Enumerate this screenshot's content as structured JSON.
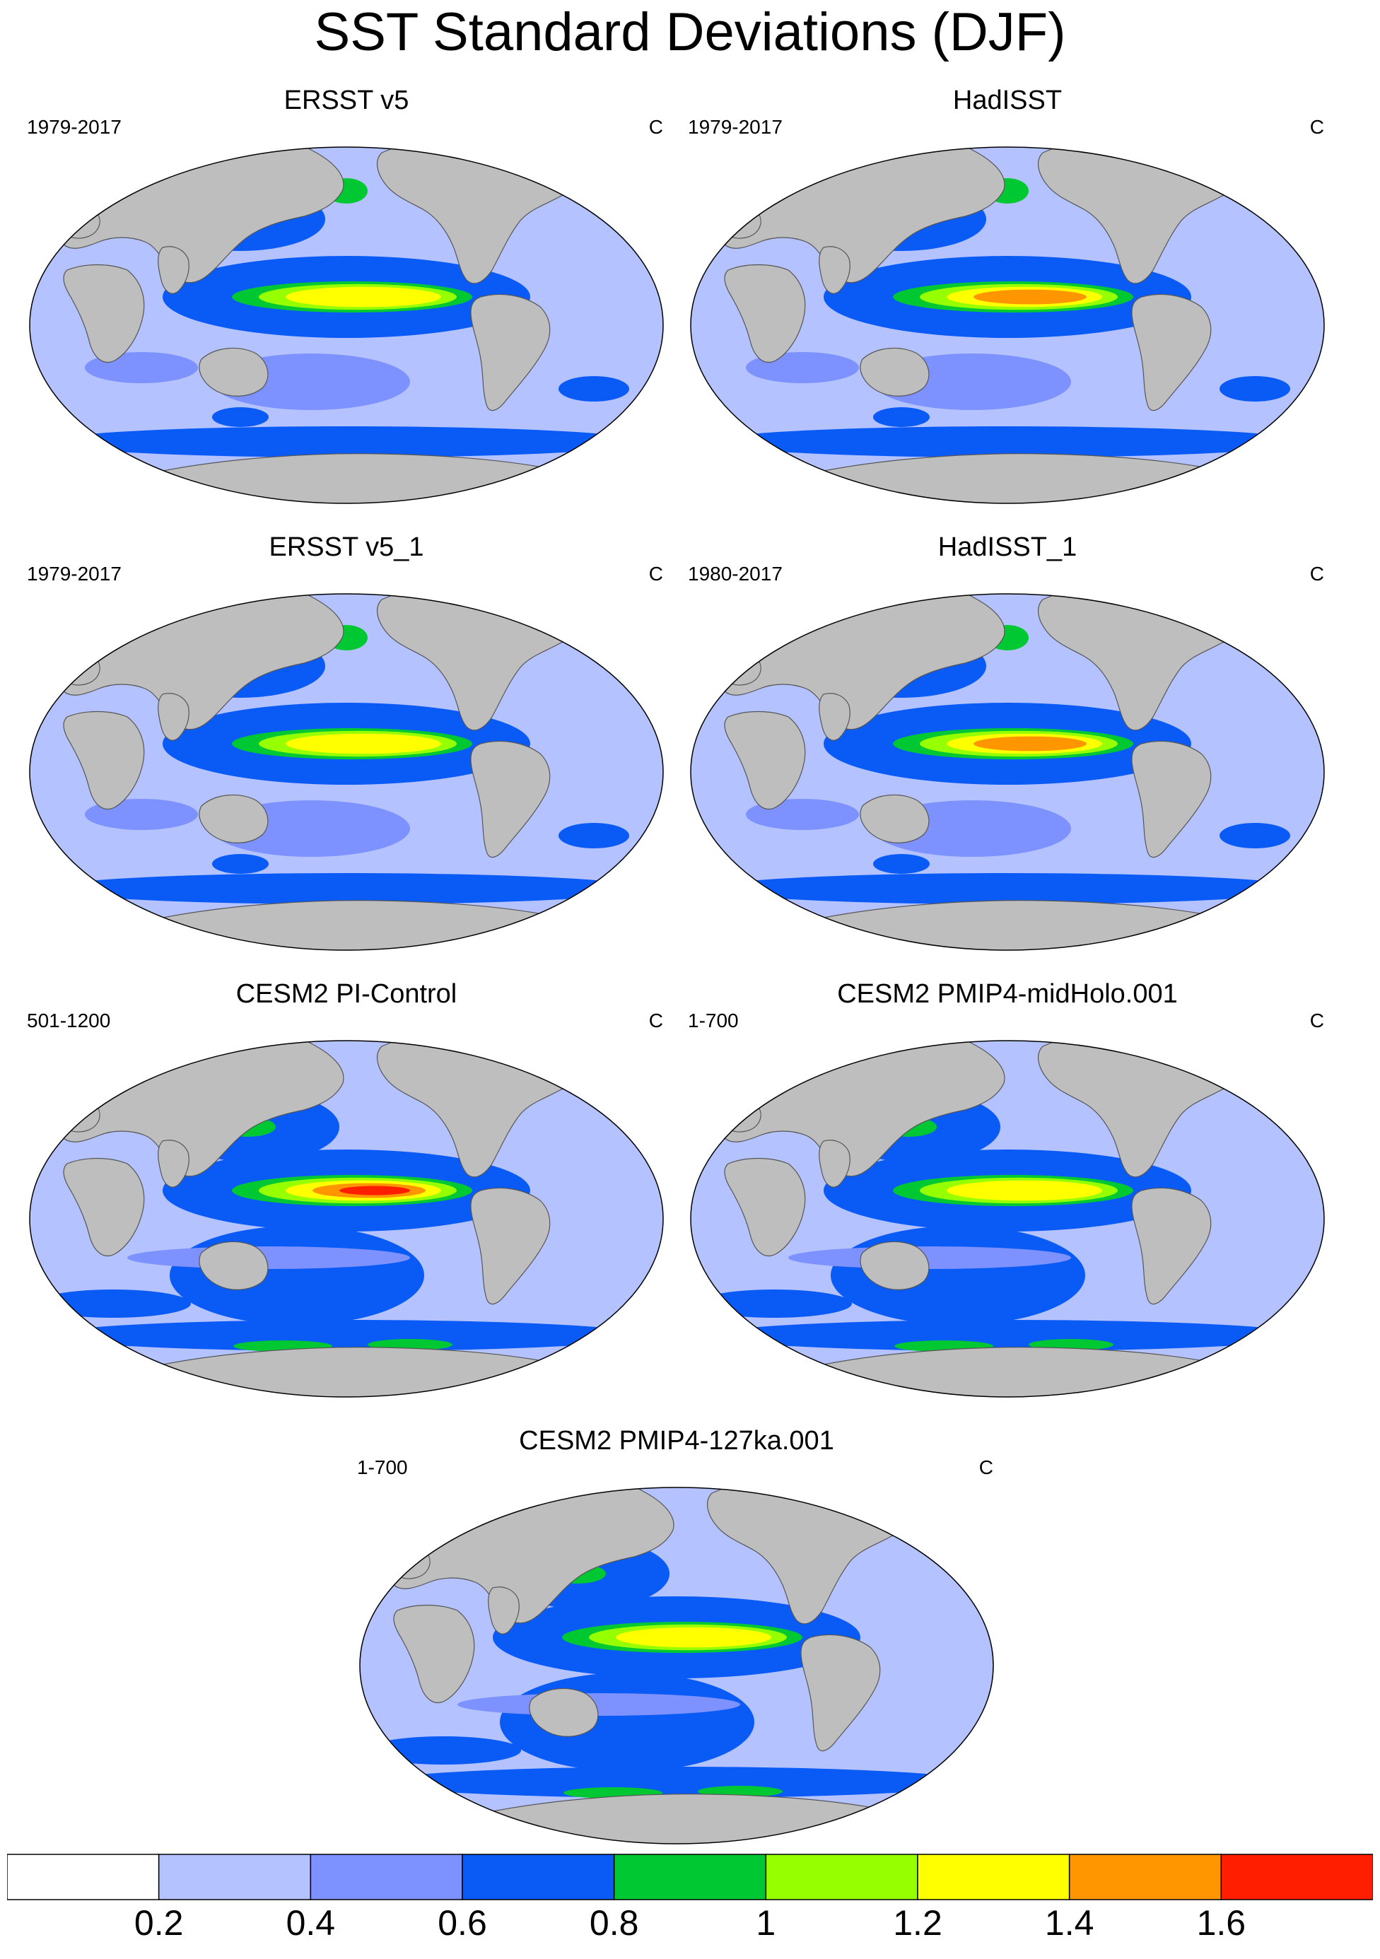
{
  "title": "SST Standard Deviations (DJF)",
  "panels": [
    {
      "title": "ERSST v5",
      "period": "1979-2017",
      "unit": "C",
      "enso_max": 1.25,
      "kind": "obs"
    },
    {
      "title": "HadISST",
      "period": "1979-2017",
      "unit": "C",
      "enso_max": 1.45,
      "kind": "obs2"
    },
    {
      "title": "ERSST v5_1",
      "period": "1979-2017",
      "unit": "C",
      "enso_max": 1.25,
      "kind": "obs"
    },
    {
      "title": "HadISST_1",
      "period": "1980-2017",
      "unit": "C",
      "enso_max": 1.45,
      "kind": "obs2"
    },
    {
      "title": "CESM2 PI-Control",
      "period": "501-1200",
      "unit": "C",
      "enso_max": 1.65,
      "kind": "model"
    },
    {
      "title": "CESM2 PMIP4-midHolo.001",
      "period": "1-700",
      "unit": "C",
      "enso_max": 1.3,
      "kind": "model"
    },
    {
      "title": "CESM2 PMIP4-127ka.001",
      "period": "1-700",
      "unit": "C",
      "enso_max": 1.2,
      "kind": "model"
    }
  ],
  "legend": {
    "levels": [
      "0.2",
      "0.4",
      "0.6",
      "0.8",
      "1",
      "1.2",
      "1.4",
      "1.6"
    ],
    "colors": [
      "#ffffff",
      "#b4c3ff",
      "#7d91ff",
      "#0a5af5",
      "#00c832",
      "#96ff00",
      "#ffff00",
      "#ff9600",
      "#ff1e00"
    ]
  },
  "land_color": "#bebebe"
}
